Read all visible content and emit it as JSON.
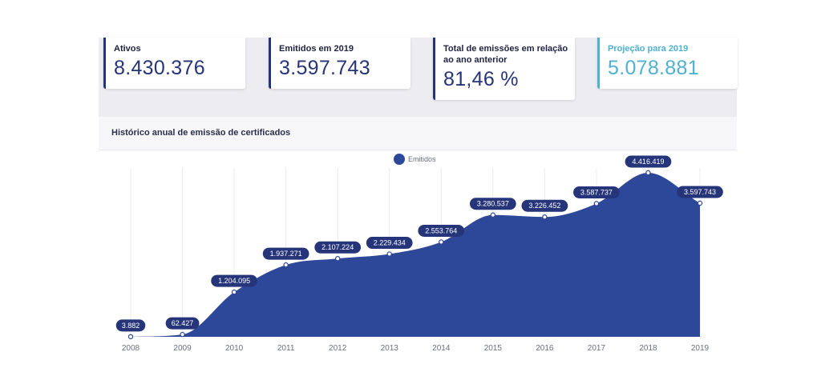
{
  "stats": [
    {
      "label": "Ativos",
      "value": "8.430.376"
    },
    {
      "label": "Emitidos em 2019",
      "value": "3.597.743"
    },
    {
      "label": "Total de emissões em relação ao ano anterior",
      "value": "81,46 %"
    },
    {
      "label": "Projeção para 2019",
      "value": "5.078.881"
    }
  ],
  "colors": {
    "primary": "#2d4799",
    "accent": "#4fb1d0"
  },
  "chart_data": {
    "type": "area",
    "title": "Histórico anual de emissão de certificados",
    "x": [
      "2008",
      "2009",
      "2010",
      "2011",
      "2012",
      "2013",
      "2014",
      "2015",
      "2016",
      "2017",
      "2018",
      "2019"
    ],
    "series": [
      {
        "name": "Emitidos",
        "values": [
          3882,
          62427,
          1204095,
          1937271,
          2107224,
          2229434,
          2553764,
          3280537,
          3226452,
          3587737,
          4416419,
          3597743
        ],
        "labels": [
          "3.882",
          "62.427",
          "1.204.095",
          "1.937.271",
          "2.107.224",
          "2.229.434",
          "2.553.764",
          "3.280.537",
          "3.226.452",
          "3.587.737",
          "4.416.419",
          "3.597.743"
        ]
      }
    ],
    "legend": "top-center",
    "grid": "vertical"
  }
}
